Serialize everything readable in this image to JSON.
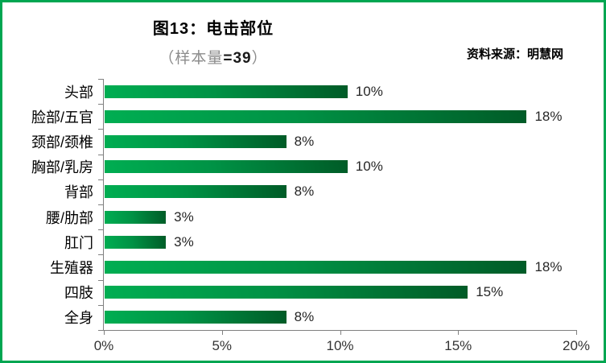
{
  "frame": {
    "border_color": "#00A651",
    "background_color": "#ffffff"
  },
  "header": {
    "title": "图13：电击部位",
    "subtitle_prefix": "（样本量",
    "subtitle_value": "=39",
    "subtitle_suffix": "）",
    "source": "资料来源：明慧网"
  },
  "chart_data": {
    "type": "bar",
    "orientation": "horizontal",
    "title": "图13：电击部位",
    "subtitle": "（样本量=39）",
    "sample_size": 39,
    "source": "资料来源：明慧网",
    "categories": [
      "头部",
      "脸部/五官",
      "颈部/颈椎",
      "胸部/乳房",
      "背部",
      "腰/肋部",
      "肛门",
      "生殖器",
      "四肢",
      "全身"
    ],
    "values": [
      10.3,
      17.9,
      7.7,
      10.3,
      7.7,
      2.6,
      2.6,
      17.9,
      15.4,
      7.7
    ],
    "data_labels": [
      "10%",
      "18%",
      "8%",
      "10%",
      "8%",
      "3%",
      "3%",
      "18%",
      "15%",
      "8%"
    ],
    "x_ticks": [
      "0%",
      "5%",
      "10%",
      "15%",
      "20%"
    ],
    "xlim": [
      0,
      20
    ],
    "grid": false,
    "legend": false,
    "bar_color_light": "#00AE52",
    "bar_color_mid": "#009245",
    "bar_color_dark": "#005B27",
    "axis_color": "#808080"
  }
}
